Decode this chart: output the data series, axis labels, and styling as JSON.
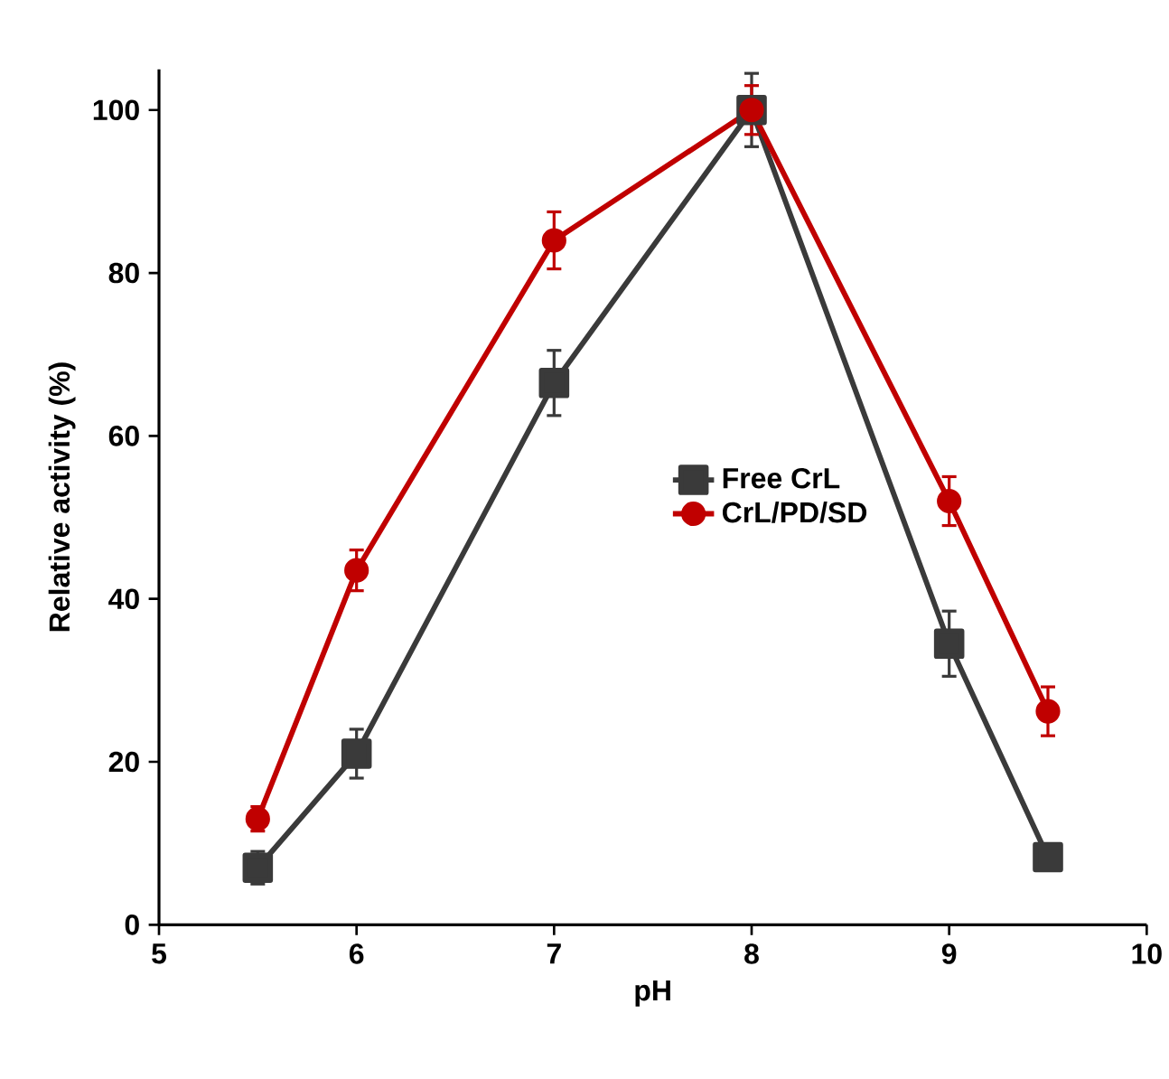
{
  "chart_data": {
    "type": "line",
    "xlabel": "pH",
    "ylabel": "Relative activity (%)",
    "x": [
      5.5,
      6,
      7,
      8,
      9,
      9.5
    ],
    "series": [
      {
        "name": "Free CrL",
        "color": "#3a3a3a",
        "marker": "square",
        "values": [
          7,
          21,
          66.5,
          100,
          34.5,
          8.3
        ],
        "errors": [
          2,
          3,
          4,
          4.5,
          4,
          1.5
        ]
      },
      {
        "name": "CrL/PD/SD",
        "color": "#c00000",
        "marker": "circle",
        "values": [
          13,
          43.5,
          84,
          100,
          52,
          26.2
        ],
        "errors": [
          1.5,
          2.5,
          3.5,
          3,
          3,
          3
        ]
      }
    ],
    "xlim": [
      5,
      10
    ],
    "ylim": [
      0,
      105
    ],
    "xticks": [
      5,
      6,
      7,
      8,
      9,
      10
    ],
    "yticks": [
      0,
      20,
      40,
      60,
      80,
      100
    ],
    "grid": false,
    "legend": "center",
    "line_style": "solid"
  }
}
